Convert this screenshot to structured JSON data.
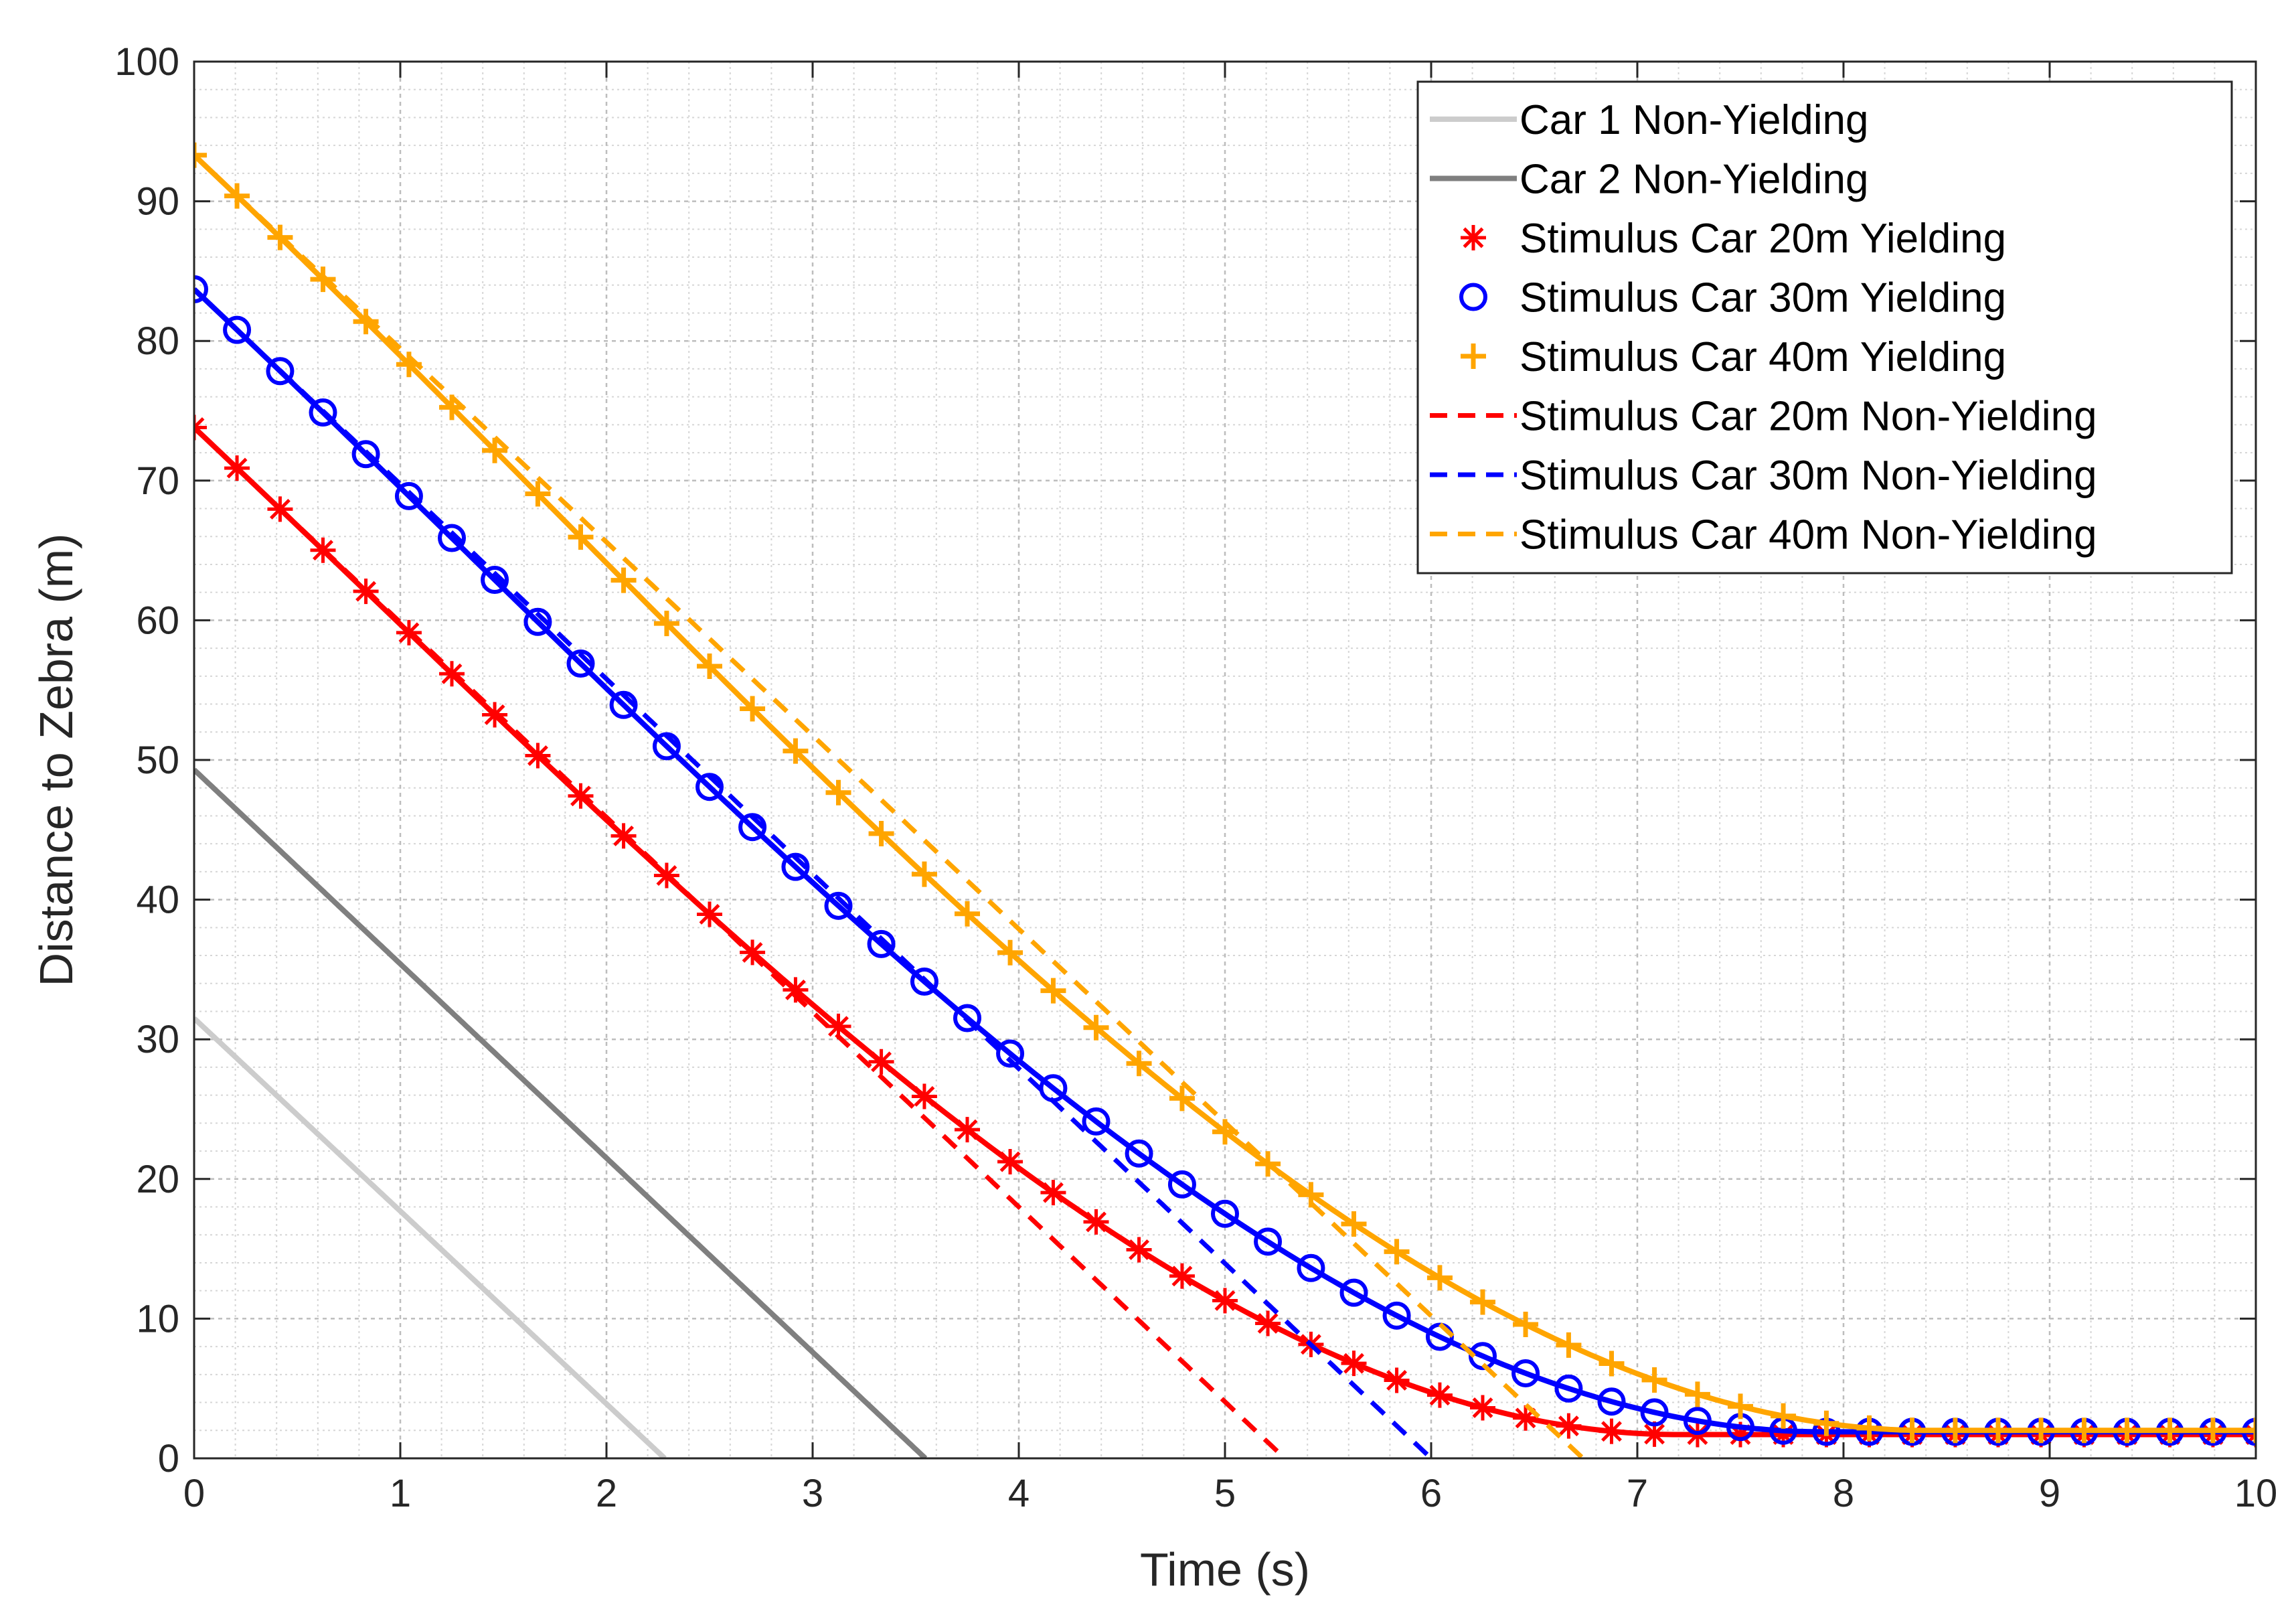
{
  "chart_data": {
    "type": "line",
    "title": "",
    "xlabel": "Time (s)",
    "ylabel": "Distance to Zebra (m)",
    "xlim": [
      0,
      10
    ],
    "ylim": [
      0,
      100
    ],
    "x_ticks": [
      0,
      1,
      2,
      3,
      4,
      5,
      6,
      7,
      8,
      9,
      10
    ],
    "y_ticks": [
      0,
      10,
      20,
      30,
      40,
      50,
      60,
      70,
      80,
      90,
      100
    ],
    "grid": true,
    "minor_grid": true,
    "legend_position": "top-right",
    "series": [
      {
        "name": "Car 1 Non-Yielding",
        "color": "#cccccc",
        "line": "solid",
        "marker": "none",
        "kind": "linear",
        "start": 31.5,
        "speed": 13.8
      },
      {
        "name": "Car 2 Non-Yielding",
        "color": "#7f7f7f",
        "line": "solid",
        "marker": "none",
        "kind": "linear",
        "start": 49.3,
        "speed": 13.9
      },
      {
        "name": "Stimulus Car 20m Yielding",
        "color": "#ff0000",
        "line": "solid",
        "marker": "star",
        "kind": "yielding",
        "start": 73.8,
        "speed": 13.9,
        "stop_time": 7.2,
        "stop_distance": 1.7
      },
      {
        "name": "Stimulus Car 30m Yielding",
        "color": "#0000ff",
        "line": "solid",
        "marker": "circle",
        "kind": "yielding",
        "start": 83.7,
        "speed": 13.9,
        "stop_time": 7.9,
        "stop_distance": 1.9
      },
      {
        "name": "Stimulus Car 40m Yielding",
        "color": "#ffa500",
        "line": "solid",
        "marker": "plus",
        "kind": "yielding",
        "start": 93.3,
        "speed": 13.9,
        "stop_time": 8.4,
        "stop_distance": 2.0
      },
      {
        "name": "Stimulus Car 20m Non-Yielding",
        "color": "#ff0000",
        "line": "dashed",
        "marker": "none",
        "kind": "linear",
        "start": 73.8,
        "speed": 13.95
      },
      {
        "name": "Stimulus Car 30m Non-Yielding",
        "color": "#0000ff",
        "line": "dashed",
        "marker": "none",
        "kind": "linear",
        "start": 83.7,
        "speed": 13.95
      },
      {
        "name": "Stimulus Car 40m Non-Yielding",
        "color": "#ffa500",
        "line": "dashed",
        "marker": "none",
        "kind": "linear",
        "start": 93.3,
        "speed": 13.85
      }
    ],
    "marker_times": [
      0,
      0.208,
      0.417,
      0.625,
      0.833,
      1.042,
      1.25,
      1.458,
      1.667,
      1.875,
      2.083,
      2.292,
      2.5,
      2.708,
      2.917,
      3.125,
      3.333,
      3.542,
      3.75,
      3.958,
      4.167,
      4.375,
      4.583,
      4.792,
      5.0,
      5.208,
      5.417,
      5.625,
      5.833,
      6.042,
      6.25,
      6.458,
      6.667,
      6.875,
      7.083,
      7.292,
      7.5,
      7.708,
      7.917,
      8.125,
      8.333,
      8.542,
      8.75,
      8.958,
      9.167,
      9.375,
      9.583,
      9.792,
      10.0
    ]
  }
}
